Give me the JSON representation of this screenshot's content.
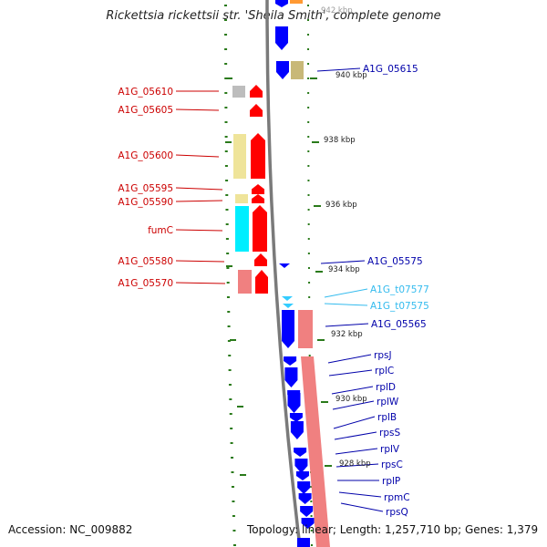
{
  "title": "Rickettsia rickettsii str. 'Sheila Smith', complete genome",
  "accession": "Accession: NC_009882",
  "summary": "Topology: linear; Length: 1,257,710 bp; Genes: 1,379",
  "colors": {
    "cds": "#ff0000",
    "cds_right": "#0000ff",
    "trna": "#33ccff",
    "backbone": "#7a7a7a",
    "tick": "#2a7a1a",
    "cog_pink": "#f08080",
    "cog_yellow": "#efe49a",
    "cog_cyan": "#00eeff",
    "cog_gray": "#bdbdbd",
    "cog_olive": "#c8b878"
  },
  "left_labels": [
    {
      "text": "A1G_05610",
      "color": "#cc0000"
    },
    {
      "text": "A1G_05605",
      "color": "#cc0000"
    },
    {
      "text": "A1G_05600",
      "color": "#cc0000"
    },
    {
      "text": "A1G_05595",
      "color": "#cc0000"
    },
    {
      "text": "A1G_05590",
      "color": "#cc0000"
    },
    {
      "text": "fumC",
      "color": "#cc0000"
    },
    {
      "text": "A1G_05580",
      "color": "#cc0000"
    },
    {
      "text": "A1G_05570",
      "color": "#cc0000"
    }
  ],
  "right_labels": [
    {
      "text": "A1G_05615",
      "color": "#0000aa"
    },
    {
      "text": "A1G_05575",
      "color": "#0000aa"
    },
    {
      "text": "A1G_t07577",
      "color": "#33bbee"
    },
    {
      "text": "A1G_t07575",
      "color": "#33bbee"
    },
    {
      "text": "A1G_05565",
      "color": "#0000aa"
    },
    {
      "text": "rpsJ",
      "color": "#0000aa"
    },
    {
      "text": "rplC",
      "color": "#0000aa"
    },
    {
      "text": "rplD",
      "color": "#0000aa"
    },
    {
      "text": "rplW",
      "color": "#0000aa"
    },
    {
      "text": "rplB",
      "color": "#0000aa"
    },
    {
      "text": "rpsS",
      "color": "#0000aa"
    },
    {
      "text": "rplV",
      "color": "#0000aa"
    },
    {
      "text": "rpsC",
      "color": "#0000aa"
    },
    {
      "text": "rplP",
      "color": "#0000aa"
    },
    {
      "text": "rpmC",
      "color": "#0000aa"
    },
    {
      "text": "rpsQ",
      "color": "#0000aa"
    }
  ],
  "kbp_labels": [
    "942 kbp",
    "940 kbp",
    "938 kbp",
    "936 kbp",
    "934 kbp",
    "932 kbp",
    "930 kbp",
    "928 kbp"
  ]
}
